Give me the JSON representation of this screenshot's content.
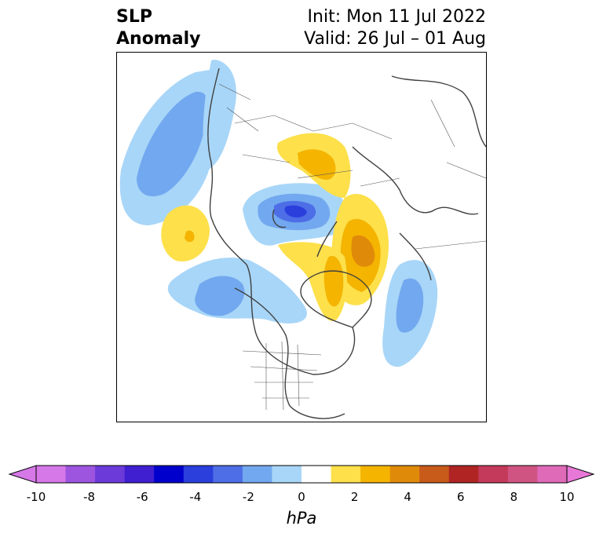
{
  "title": {
    "left_line1": "SLP",
    "left_line2": "Anomaly",
    "right_line1": "Init: Mon 11 Jul 2022",
    "right_line2": "Valid: 26 Jul – 01 Aug"
  },
  "colorbar": {
    "units": "hPa",
    "ticks": [
      "-10",
      "-8",
      "-6",
      "-4",
      "-2",
      "0",
      "2",
      "4",
      "6",
      "8",
      "10"
    ],
    "colors": [
      "#d678e8",
      "#9d55e0",
      "#6b3ad8",
      "#3f1fd0",
      "#0000cc",
      "#2a3fdc",
      "#4d6ee6",
      "#72a8ef",
      "#a8d6f8",
      "#ffffff",
      "#fde04a",
      "#f4b400",
      "#e08a0a",
      "#c85a1a",
      "#b02424",
      "#c43a5a",
      "#d05482",
      "#de6ab8"
    ],
    "extend_low_color": "#d678e8",
    "extend_high_color": "#e878d8"
  },
  "map": {
    "projection": "north-polar-stereographic",
    "field": "sea-level-pressure-anomaly"
  }
}
